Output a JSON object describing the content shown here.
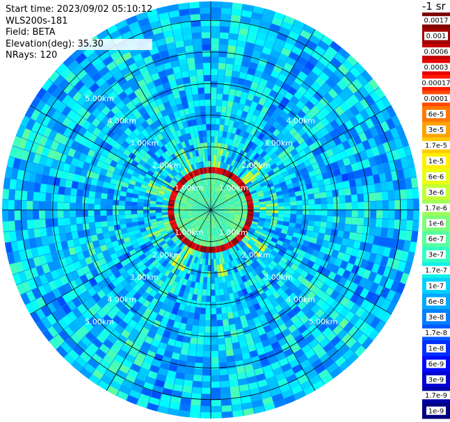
{
  "info": {
    "start_time": "Start time: 2023/09/02 05:10:12",
    "instrument": "WLS200s-181",
    "field": "Field: BETA",
    "elevation": "Elevation(deg): 35.30",
    "nrays": "NRays: 120"
  },
  "colorbar": {
    "unit_title": "-1 sr",
    "labels": [
      "0.0017",
      "0.001",
      "0.0006",
      "0.0003",
      "0.00017",
      "0.0001",
      "6e-5",
      "3e-5",
      "1.7e-5",
      "1e-5",
      "6e-6",
      "3e-6",
      "1.7e-6",
      "1e-6",
      "6e-7",
      "3e-7",
      "1.7e-7",
      "1e-7",
      "6e-8",
      "3e-8",
      "1.7e-8",
      "1e-8",
      "6e-9",
      "3e-9",
      "1.7e-9",
      "1e-9"
    ],
    "colors": [
      "#7f0000",
      "#a00000",
      "#c40000",
      "#e60000",
      "#ff1a00",
      "#ff4a00",
      "#ff7800",
      "#ffa200",
      "#ffcb00",
      "#fff000",
      "#e8ff10",
      "#c4ff34",
      "#a0ff57",
      "#7dff7a",
      "#57ffa0",
      "#34ffc4",
      "#10f0e8",
      "#00d0ff",
      "#00a8ff",
      "#0080ff",
      "#0058ff",
      "#0030ff",
      "#0008ff",
      "#0000d0",
      "#0000a8",
      "#000080"
    ]
  },
  "chart_data": {
    "type": "heatmap",
    "description": "PPI scan of lidar backscatter (BETA) in polar coordinates",
    "field": "BETA",
    "rays": 120,
    "range_rings_km": [
      1,
      2,
      3,
      4,
      5,
      6
    ],
    "ring_labels": [
      "1.00km",
      "2.00km",
      "3.00km",
      "4.00km",
      "5.00km"
    ],
    "max_range_km": 6.6,
    "color_scale": "log",
    "value_range": [
      1e-09,
      0.0017
    ]
  }
}
